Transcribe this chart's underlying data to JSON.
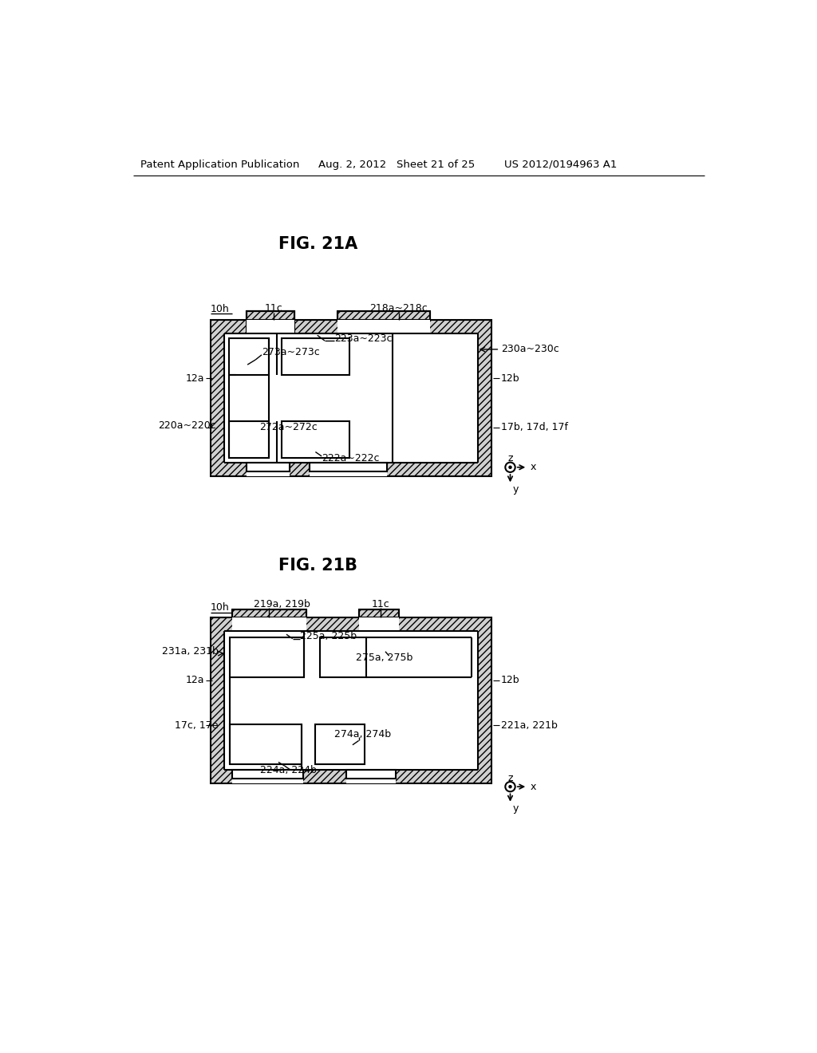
{
  "bg_color": "#ffffff",
  "header_left": "Patent Application Publication",
  "header_mid": "Aug. 2, 2012   Sheet 21 of 25",
  "header_right": "US 2012/0194963 A1",
  "fig21a_title": "FIG. 21A",
  "fig21b_title": "FIG. 21B",
  "label_10h_a": "10h",
  "label_11c_a": "11c",
  "label_218": "218a~218c",
  "label_223": "223a~223c",
  "label_273": "273a~273c",
  "label_230": "230a~230c",
  "label_12a_a": "12a",
  "label_12b_a": "12b",
  "label_220": "220a~220c",
  "label_272": "272a~272c",
  "label_222": "222a~222c",
  "label_17bdf": "17b, 17d, 17f",
  "label_10h_b": "10h",
  "label_219": "219a, 219b",
  "label_11c_b": "11c",
  "label_225": "225a, 225b",
  "label_275": "275a, 275b",
  "label_231": "231a, 231b",
  "label_12a_b": "12a",
  "label_12b_b": "12b",
  "label_17ce": "17c, 17e",
  "label_274": "274a, 274b",
  "label_221": "221a, 221b",
  "label_224": "224a, 224b"
}
